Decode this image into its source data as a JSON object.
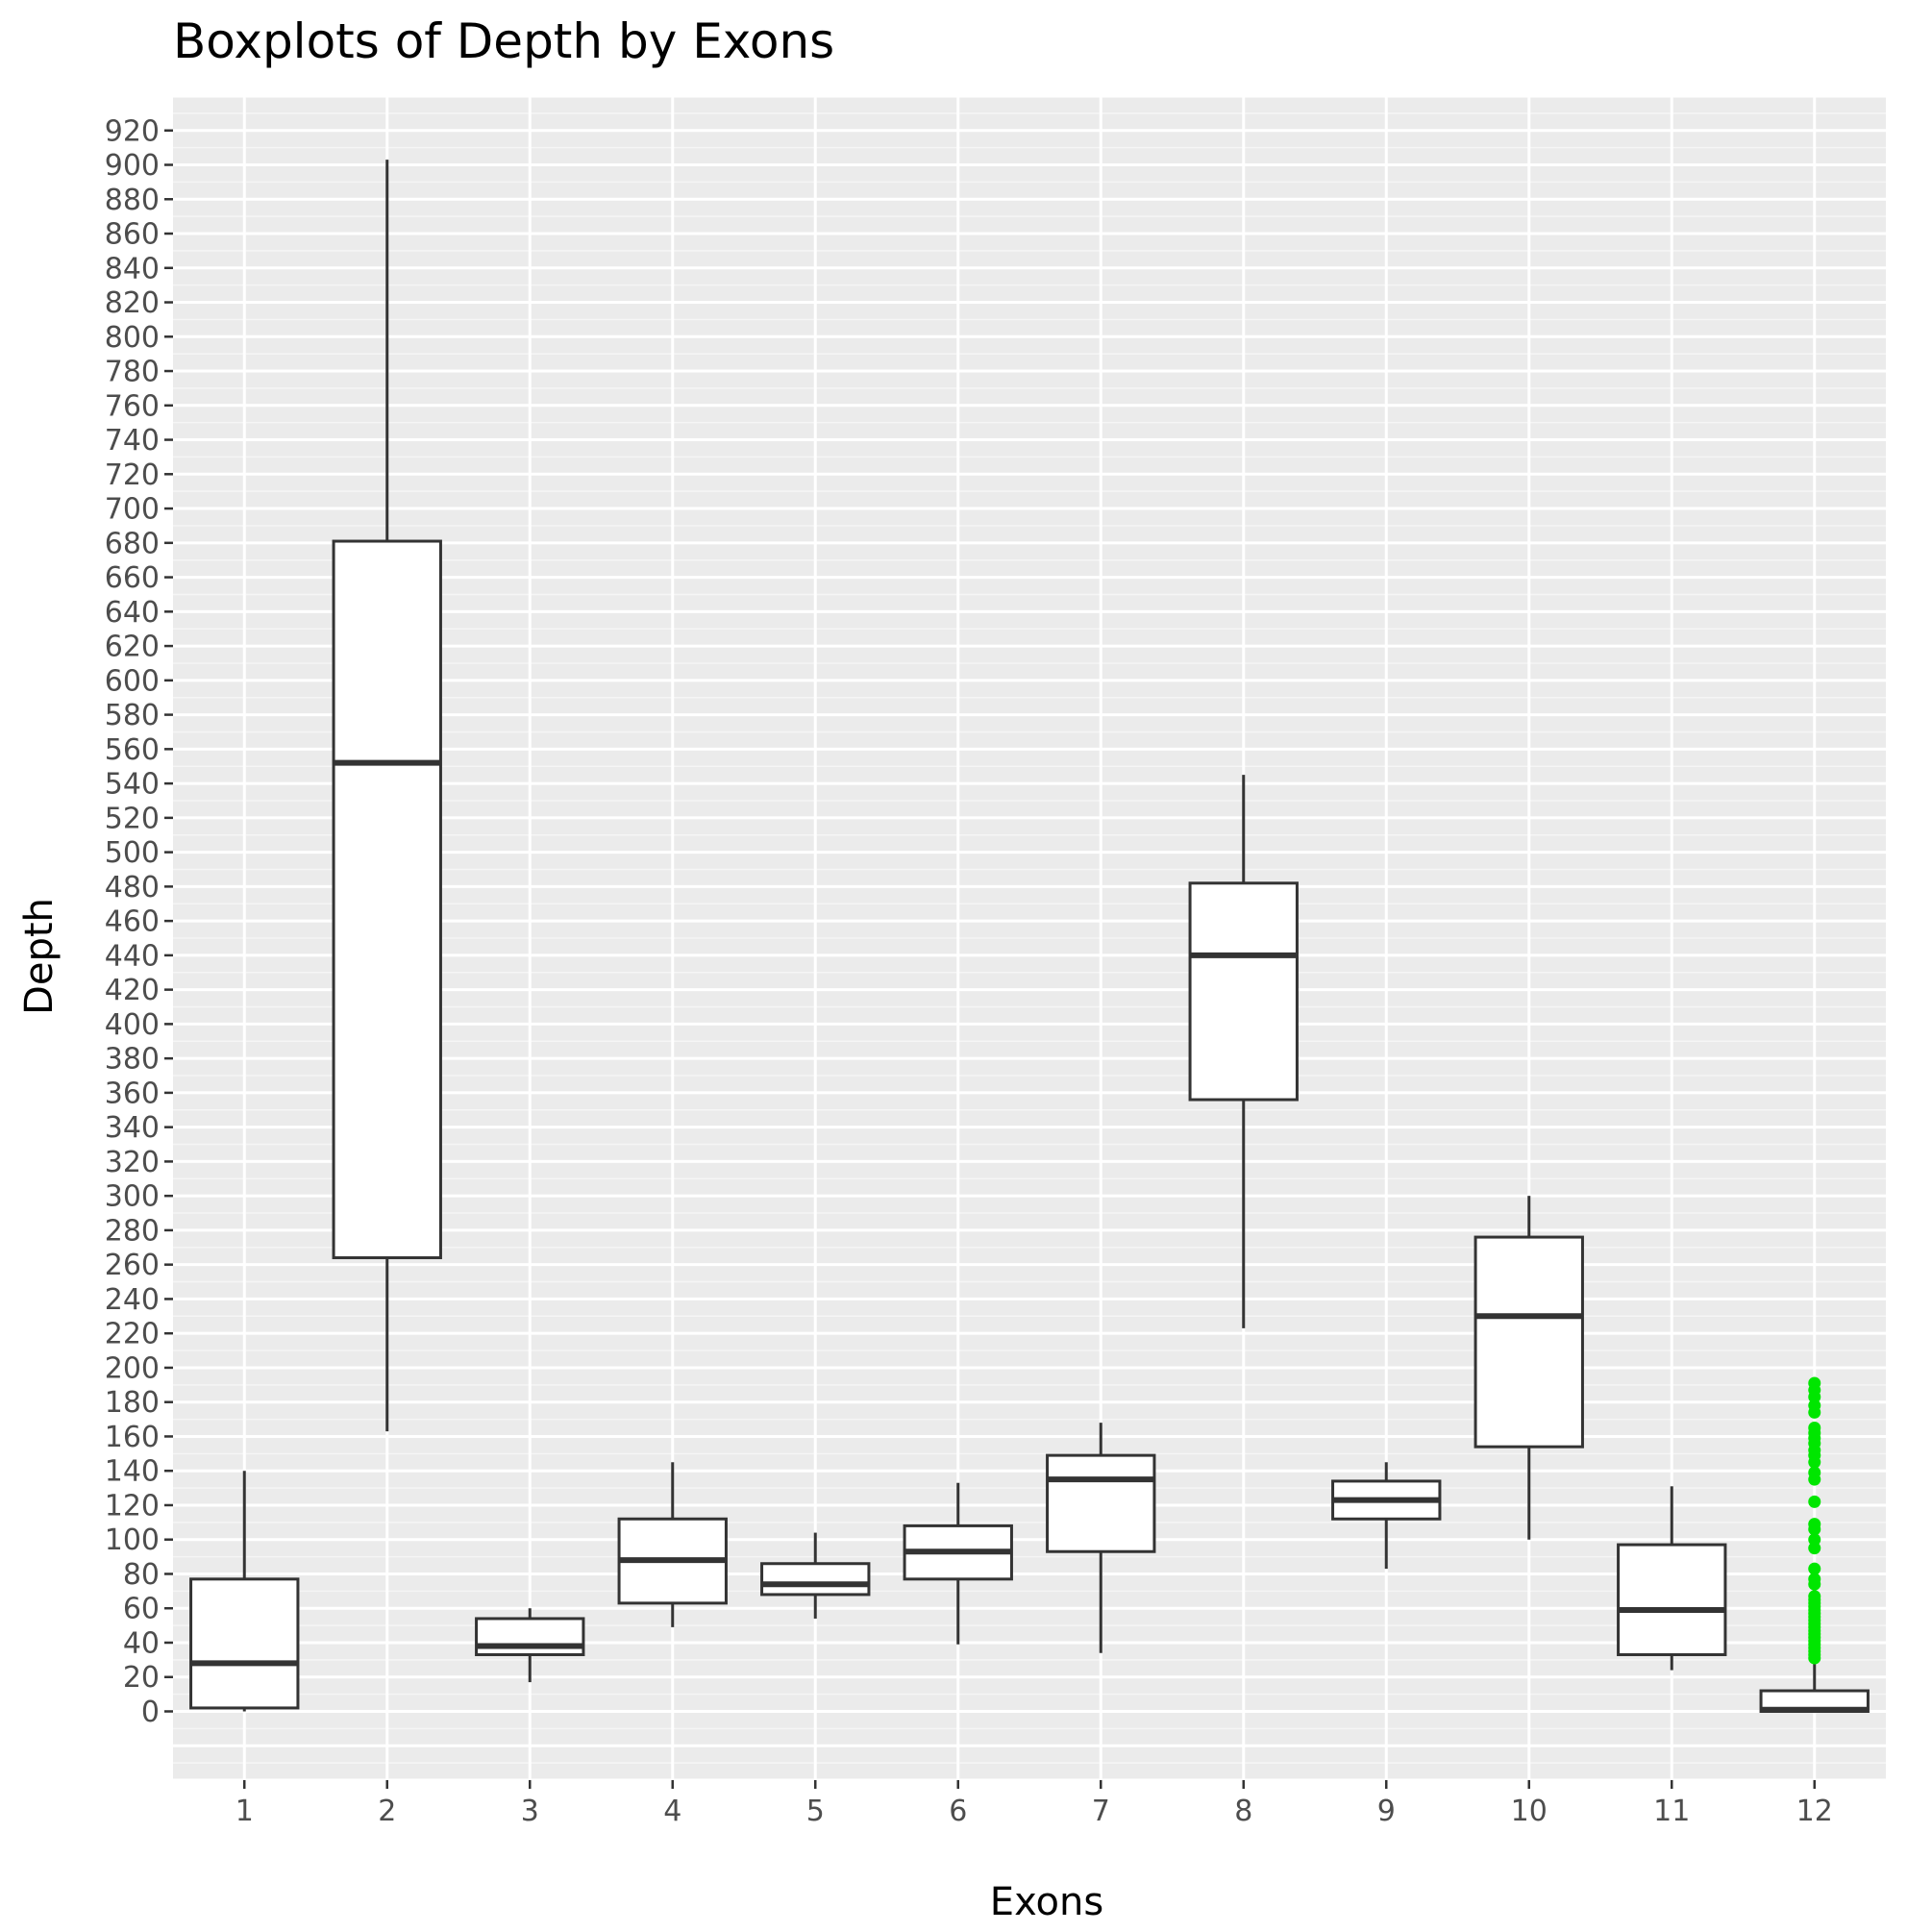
{
  "chart_data": {
    "type": "boxplot",
    "title": "Boxplots of Depth by Exons",
    "xlabel": "Exons",
    "ylabel": "Depth",
    "ylim": [
      -40,
      940
    ],
    "yticks": [
      0,
      20,
      40,
      60,
      80,
      100,
      120,
      140,
      160,
      180,
      200,
      220,
      240,
      260,
      280,
      300,
      320,
      340,
      360,
      380,
      400,
      420,
      440,
      460,
      480,
      500,
      520,
      540,
      560,
      580,
      600,
      620,
      640,
      660,
      680,
      700,
      720,
      740,
      760,
      780,
      800,
      820,
      840,
      860,
      880,
      900,
      920
    ],
    "categories": [
      "1",
      "2",
      "3",
      "4",
      "5",
      "6",
      "7",
      "8",
      "9",
      "10",
      "11",
      "12"
    ],
    "grid": true,
    "background_color": "#ebebeb",
    "box_fill": "#ffffff",
    "box_stroke": "#333333",
    "outlier_color": "#00e600",
    "boxes": [
      {
        "category": "1",
        "whisker_low": 0,
        "q1": 2,
        "median": 28,
        "q3": 77,
        "whisker_high": 140
      },
      {
        "category": "2",
        "whisker_low": 163,
        "q1": 264,
        "median": 552,
        "q3": 681,
        "whisker_high": 903
      },
      {
        "category": "3",
        "whisker_low": 17,
        "q1": 33,
        "median": 38,
        "q3": 54,
        "whisker_high": 60
      },
      {
        "category": "4",
        "whisker_low": 49,
        "q1": 63,
        "median": 88,
        "q3": 112,
        "whisker_high": 145
      },
      {
        "category": "5",
        "whisker_low": 54,
        "q1": 68,
        "median": 74,
        "q3": 86,
        "whisker_high": 104
      },
      {
        "category": "6",
        "whisker_low": 39,
        "q1": 77,
        "median": 93,
        "q3": 108,
        "whisker_high": 133
      },
      {
        "category": "7",
        "whisker_low": 34,
        "q1": 93,
        "median": 135,
        "q3": 149,
        "whisker_high": 168
      },
      {
        "category": "8",
        "whisker_low": 223,
        "q1": 356,
        "median": 440,
        "q3": 482,
        "whisker_high": 545
      },
      {
        "category": "9",
        "whisker_low": 83,
        "q1": 112,
        "median": 123,
        "q3": 134,
        "whisker_high": 145
      },
      {
        "category": "10",
        "whisker_low": 100,
        "q1": 154,
        "median": 230,
        "q3": 276,
        "whisker_high": 300
      },
      {
        "category": "11",
        "whisker_low": 24,
        "q1": 33,
        "median": 59,
        "q3": 97,
        "whisker_high": 131
      },
      {
        "category": "12",
        "whisker_low": 0,
        "q1": 0,
        "median": 1,
        "q3": 12,
        "whisker_high": 28
      }
    ],
    "outliers": {
      "category": "12",
      "values": [
        31,
        33,
        35,
        37,
        39,
        41,
        43,
        45,
        47,
        49,
        51,
        53,
        55,
        57,
        59,
        61,
        63,
        65,
        67,
        74,
        77,
        83,
        95,
        100,
        106,
        109,
        122,
        135,
        139,
        145,
        149,
        152,
        156,
        159,
        162,
        165,
        174,
        178,
        183,
        187,
        191
      ]
    }
  }
}
